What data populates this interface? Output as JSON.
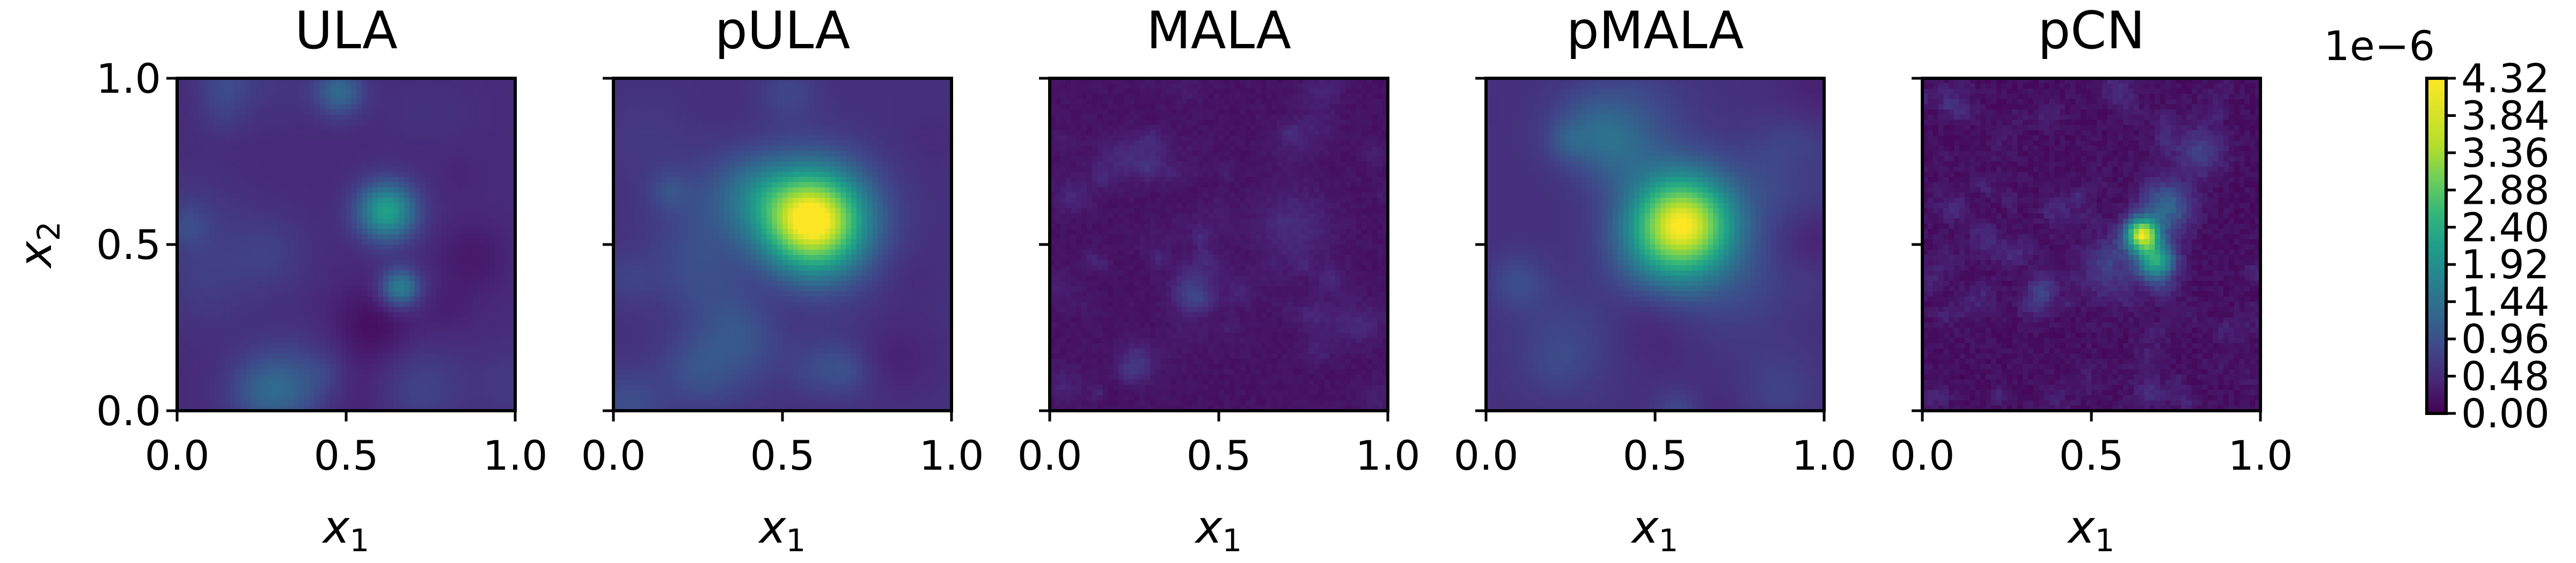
{
  "chart_data": {
    "type": "heatmap",
    "colormap": "viridis",
    "colors": {
      "low": "#440154",
      "mid": "#21918c",
      "high": "#fde725"
    },
    "panels": [
      {
        "title": "ULA",
        "xlabel": "x",
        "xlabel_sub": "1",
        "ylabel": "x",
        "ylabel_sub": "2",
        "show_yticklabels": true,
        "xlim": [
          0.0,
          1.0
        ],
        "ylim": [
          0.0,
          1.0
        ],
        "background_level": 0.12,
        "hotspots": [
          {
            "x": 0.62,
            "y": 0.6,
            "sigma": 0.06,
            "value": 0.45
          },
          {
            "x": 0.66,
            "y": 0.37,
            "sigma": 0.04,
            "value": 0.32
          },
          {
            "x": 0.48,
            "y": 0.96,
            "sigma": 0.05,
            "value": 0.22
          }
        ],
        "texture": "smooth-blobs"
      },
      {
        "title": "pULA",
        "xlabel": "x",
        "xlabel_sub": "1",
        "show_yticklabels": false,
        "xlim": [
          0.0,
          1.0
        ],
        "ylim": [
          0.0,
          1.0
        ],
        "background_level": 0.14,
        "hotspots": [
          {
            "x": 0.59,
            "y": 0.57,
            "sigma": 0.11,
            "value": 0.92
          }
        ],
        "texture": "smooth-blobs"
      },
      {
        "title": "MALA",
        "xlabel": "x",
        "xlabel_sub": "1",
        "show_yticklabels": false,
        "xlim": [
          0.0,
          1.0
        ],
        "ylim": [
          0.0,
          1.0
        ],
        "background_level": 0.05,
        "hotspots": [
          {
            "x": 0.42,
            "y": 0.38,
            "sigma": 0.04,
            "value": 0.1
          },
          {
            "x": 0.72,
            "y": 0.55,
            "sigma": 0.08,
            "value": 0.07
          }
        ],
        "texture": "fine-noise"
      },
      {
        "title": "pMALA",
        "xlabel": "x",
        "xlabel_sub": "1",
        "show_yticklabels": false,
        "xlim": [
          0.0,
          1.0
        ],
        "ylim": [
          0.0,
          1.0
        ],
        "background_level": 0.14,
        "hotspots": [
          {
            "x": 0.58,
            "y": 0.56,
            "sigma": 0.11,
            "value": 0.9
          }
        ],
        "texture": "smooth-blobs"
      },
      {
        "title": "pCN",
        "xlabel": "x",
        "xlabel_sub": "1",
        "show_yticklabels": false,
        "xlim": [
          0.0,
          1.0
        ],
        "ylim": [
          0.0,
          1.0
        ],
        "background_level": 0.04,
        "hotspots": [
          {
            "x": 0.65,
            "y": 0.53,
            "sigma": 0.035,
            "value": 0.88
          },
          {
            "x": 0.69,
            "y": 0.45,
            "sigma": 0.04,
            "value": 0.55
          },
          {
            "x": 0.72,
            "y": 0.62,
            "sigma": 0.05,
            "value": 0.28
          },
          {
            "x": 0.82,
            "y": 0.78,
            "sigma": 0.05,
            "value": 0.15
          },
          {
            "x": 0.55,
            "y": 0.42,
            "sigma": 0.06,
            "value": 0.12
          }
        ],
        "texture": "speckle"
      }
    ],
    "x_ticks": [
      "0.0",
      "0.5",
      "1.0"
    ],
    "y_ticks": [
      "0.0",
      "0.5",
      "1.0"
    ],
    "colorbar": {
      "offset_text": "1e−6",
      "min": 0.0,
      "max": 4.32,
      "ticks": [
        "0.00",
        "0.48",
        "0.96",
        "1.44",
        "1.92",
        "2.40",
        "2.88",
        "3.36",
        "3.84",
        "4.32"
      ]
    },
    "grid": false
  }
}
